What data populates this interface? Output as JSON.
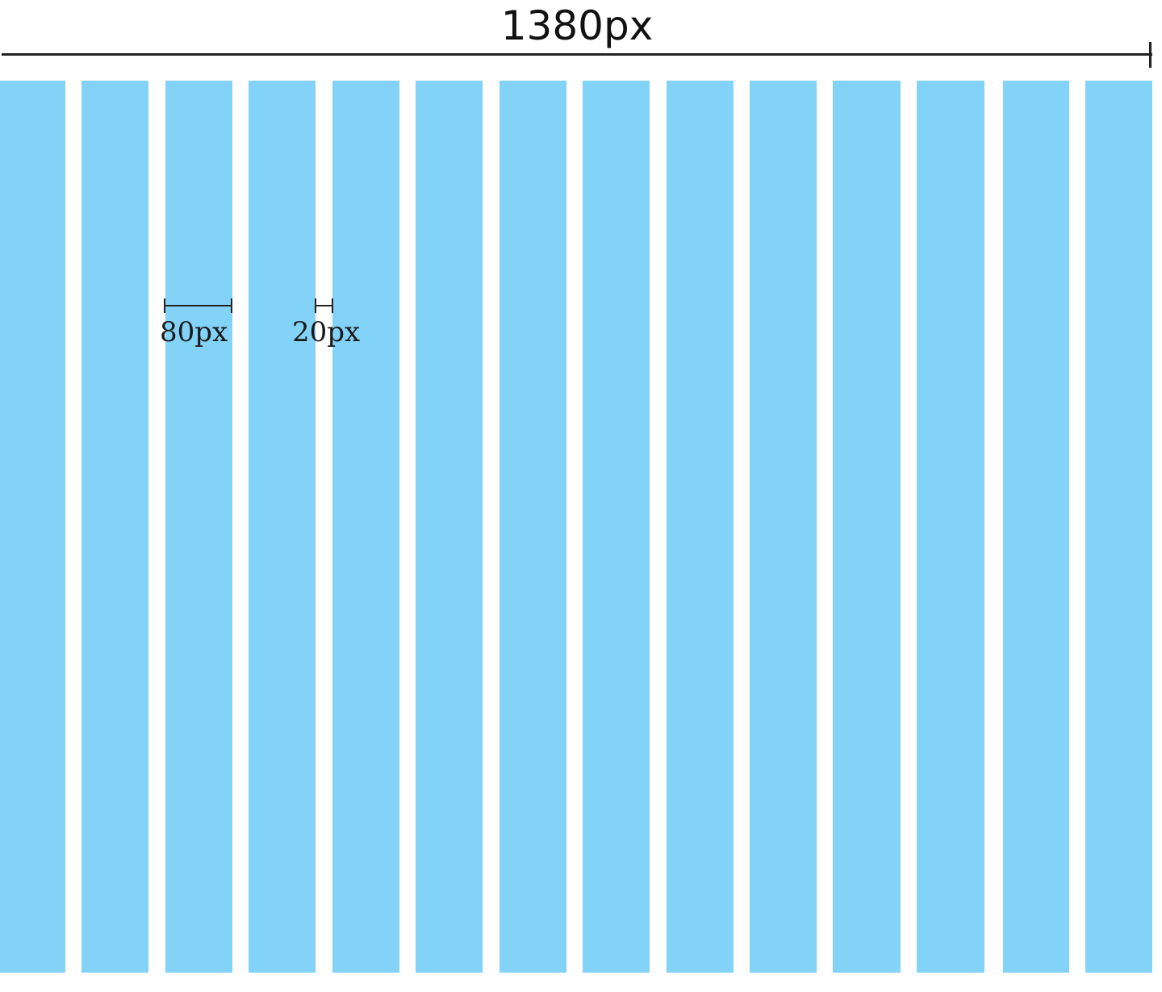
{
  "diagram": {
    "total_width_label": "1380px",
    "column_width_label": "80px",
    "gutter_width_label": "20px",
    "column_count": 14,
    "column_color": "#83d3f8",
    "line_color": "#222222",
    "background_color": "#ffffff"
  }
}
